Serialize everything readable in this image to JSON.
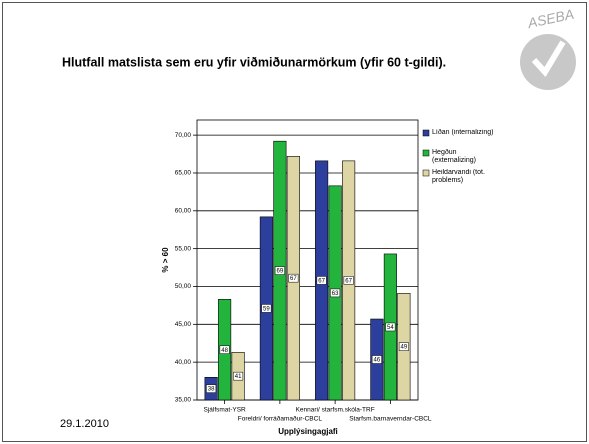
{
  "logo": "ASEBA",
  "date": "29.1.2010",
  "chart_data": {
    "type": "bar",
    "title": "Hlutfall matslista sem eru yfir viðmiðunarmörkum (yfir 60 t-gildi).",
    "y_label": "% > 60",
    "x_label": "Upplýsingagjafi",
    "categories": [
      "Sjálfsmat-YSR",
      "Foreldri/ forráðamaður-CBCL",
      "Kennari/ starfsm.skóla-TRF",
      "Starfsm.barnaverndar-CBCL"
    ],
    "series": [
      {
        "name": "Líðan (internalizing)",
        "color": "#2d3f9c",
        "values": [
          38.0,
          59.2,
          66.6,
          45.7
        ],
        "value_labels": [
          "38",
          "59",
          "67",
          "46"
        ]
      },
      {
        "name": "Hegðun (externalizing)",
        "color": "#22b43c",
        "values": [
          48.3,
          69.2,
          63.3,
          54.3
        ],
        "value_labels": [
          "48",
          "69",
          "63",
          "54"
        ]
      },
      {
        "name": "Heildarvandi (tot. problems)",
        "color": "#ddd5a3",
        "values": [
          41.3,
          67.2,
          66.6,
          49.1
        ],
        "value_labels": [
          "41",
          "67",
          "67",
          "49"
        ]
      }
    ],
    "ylim": [
      35,
      72
    ],
    "yticks": [
      {
        "value": 35,
        "label": "35,00"
      },
      {
        "value": 40,
        "label": "40,00"
      },
      {
        "value": 45,
        "label": "45,00"
      },
      {
        "value": 50,
        "label": "50,00"
      },
      {
        "value": 55,
        "label": "55,00"
      },
      {
        "value": 60,
        "label": "60,00"
      },
      {
        "value": 65,
        "label": "65,00"
      },
      {
        "value": 70,
        "label": "70,00"
      }
    ],
    "grid": true,
    "legend": "right"
  }
}
